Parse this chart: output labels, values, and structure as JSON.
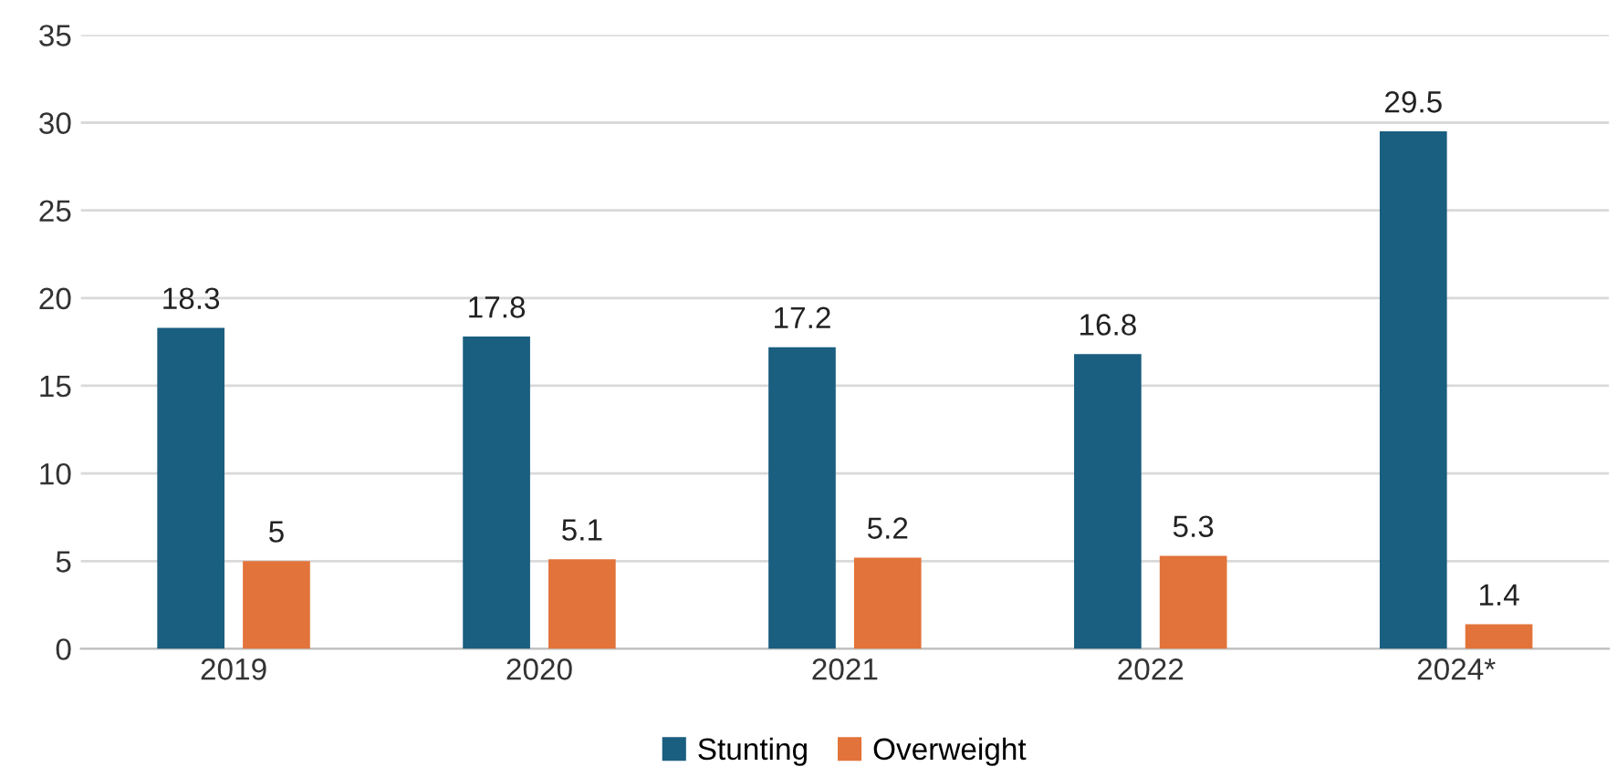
{
  "chart_data": {
    "type": "bar",
    "categories": [
      "2019",
      "2020",
      "2021",
      "2022",
      "2024*"
    ],
    "series": [
      {
        "name": "Stunting",
        "color": "#1a5e80",
        "values": [
          18.3,
          17.8,
          17.2,
          16.8,
          29.5
        ]
      },
      {
        "name": "Overweight",
        "color": "#e2733a",
        "values": [
          5,
          5.1,
          5.2,
          5.3,
          1.4
        ]
      }
    ],
    "ylim": [
      0,
      35
    ],
    "yticks": [
      0,
      5,
      10,
      15,
      20,
      25,
      30,
      35
    ],
    "grid": "y",
    "legend": "bottom",
    "data_labels": true
  }
}
